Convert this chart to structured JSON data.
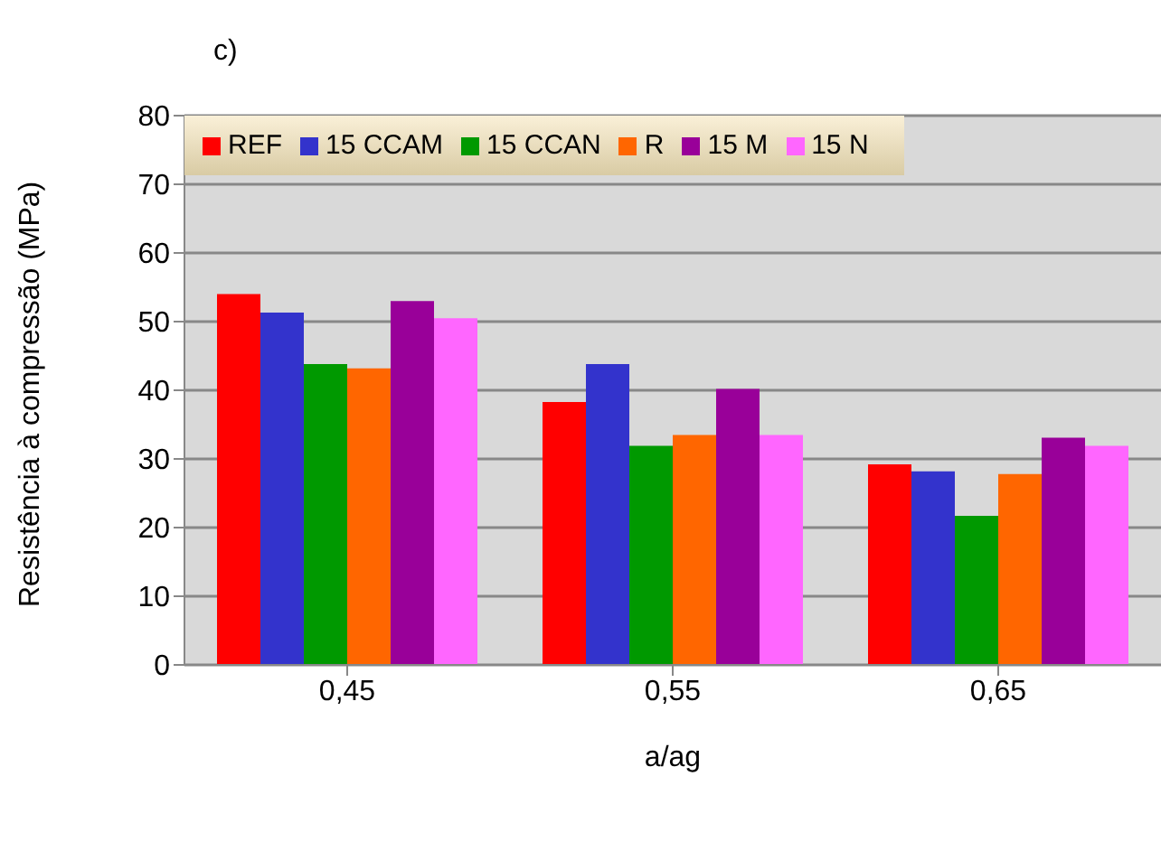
{
  "chart_data": {
    "type": "bar",
    "xlabel": "a/ag",
    "ylabel": "Resistência à compressão (MPa)",
    "annotations": [
      "c)"
    ],
    "categories": [
      "0,45",
      "0,55",
      "0,65"
    ],
    "series": [
      {
        "name": "REF",
        "color": "#ff0000",
        "values": [
          54,
          38.3,
          29.2
        ]
      },
      {
        "name": "15 CCAM",
        "color": "#3333cc",
        "values": [
          51.3,
          43.8,
          28.2
        ]
      },
      {
        "name": "15 CCAN",
        "color": "#009900",
        "values": [
          43.8,
          31.9,
          21.7
        ]
      },
      {
        "name": "R",
        "color": "#ff6600",
        "values": [
          43.2,
          33.5,
          27.8
        ]
      },
      {
        "name": "15 M",
        "color": "#990099",
        "values": [
          53,
          40.2,
          33.1
        ]
      },
      {
        "name": "15 N",
        "color": "#ff66ff",
        "values": [
          50.5,
          33.5,
          31.9
        ]
      }
    ],
    "ylim": [
      0,
      80
    ],
    "yticks": [
      0,
      10,
      20,
      30,
      40,
      50,
      60,
      70,
      80
    ],
    "grid": "y",
    "legend": "top left"
  }
}
